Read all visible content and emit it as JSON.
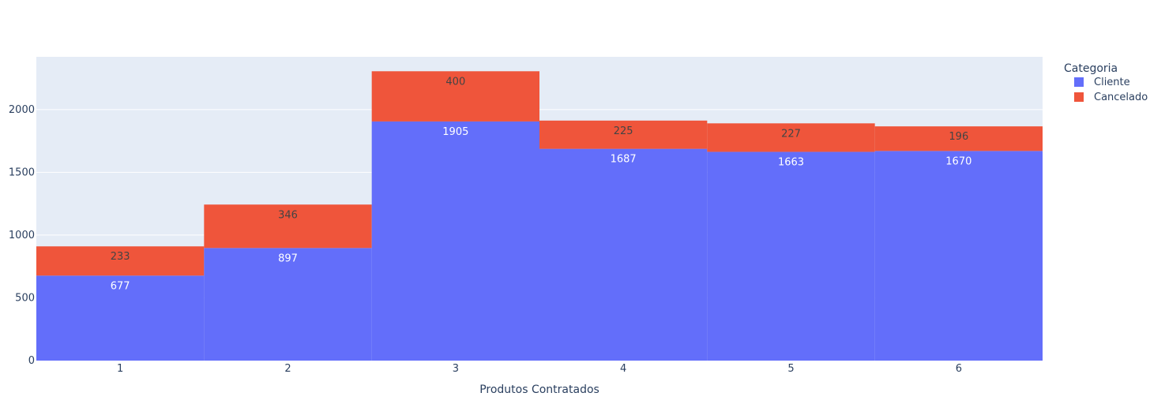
{
  "chart_data": {
    "type": "bar",
    "barmode": "stack",
    "categories": [
      "1",
      "2",
      "3",
      "4",
      "5",
      "6"
    ],
    "series": [
      {
        "name": "Cliente",
        "values": [
          677,
          897,
          1905,
          1687,
          1663,
          1670
        ],
        "color": "#636efa",
        "label_color": "#ffffff"
      },
      {
        "name": "Cancelado",
        "values": [
          233,
          346,
          400,
          225,
          227,
          196
        ],
        "color": "#ef553b",
        "label_color": "#444444"
      }
    ],
    "xlabel": "Produtos Contratados",
    "ylabel": "",
    "ylim": [
      0,
      2420
    ],
    "yticks": [
      0,
      500,
      1000,
      1500,
      2000
    ],
    "grid": true,
    "legend": {
      "title": "Categoria",
      "position": "top-right"
    },
    "colors": {
      "plot_bg": "#e5ecf6",
      "grid": "#ffffff",
      "text": "#2a3f5f"
    }
  }
}
